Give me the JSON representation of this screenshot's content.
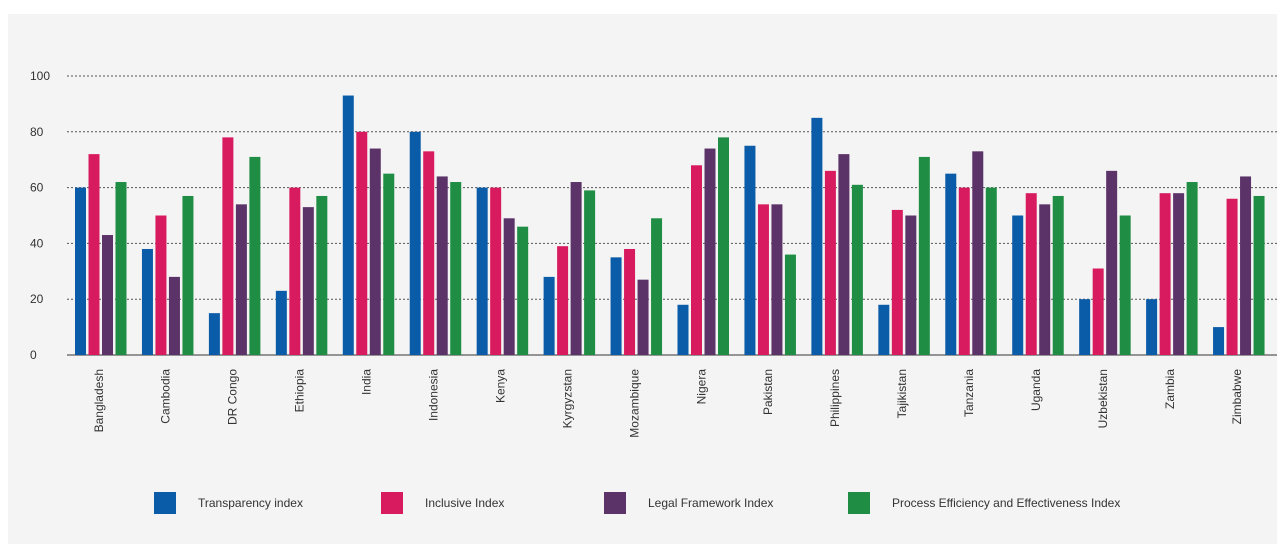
{
  "chart_data": {
    "type": "bar",
    "title": "",
    "xlabel": "",
    "ylabel": "",
    "ylim": [
      0,
      100
    ],
    "yticks": [
      0,
      20,
      40,
      60,
      80,
      100
    ],
    "grid": "horizontal dotted",
    "legend_position": "bottom",
    "categories": [
      "Bangladesh",
      "Cambodia",
      "DR Congo",
      "Ethiopia",
      "India",
      "Indonesia",
      "Kenya",
      "Kyrgyzstan",
      "Mozambique",
      "Nigera",
      "Pakistan",
      "Philippines",
      "Tajikistan",
      "Tanzania",
      "Uganda",
      "Uzbekistan",
      "Zambia",
      "Zimbabwe"
    ],
    "series": [
      {
        "name": "Transparency index",
        "color": "#0a5ba8",
        "values": [
          60,
          38,
          15,
          23,
          93,
          80,
          60,
          28,
          35,
          18,
          75,
          85,
          18,
          65,
          50,
          20,
          20,
          10
        ]
      },
      {
        "name": "Inclusive Index",
        "color": "#d81b5f",
        "values": [
          72,
          50,
          78,
          60,
          80,
          73,
          60,
          39,
          38,
          68,
          54,
          66,
          52,
          60,
          58,
          31,
          58,
          56
        ]
      },
      {
        "name": "Legal Framework Index",
        "color": "#5c3368",
        "values": [
          43,
          28,
          54,
          53,
          74,
          64,
          49,
          62,
          27,
          74,
          54,
          72,
          50,
          73,
          54,
          66,
          58,
          64
        ]
      },
      {
        "name": "Process Efficiency and Effectiveness Index",
        "color": "#1f8e44",
        "values": [
          62,
          57,
          71,
          57,
          65,
          62,
          46,
          59,
          49,
          78,
          36,
          61,
          71,
          60,
          57,
          50,
          62,
          57
        ]
      }
    ]
  }
}
